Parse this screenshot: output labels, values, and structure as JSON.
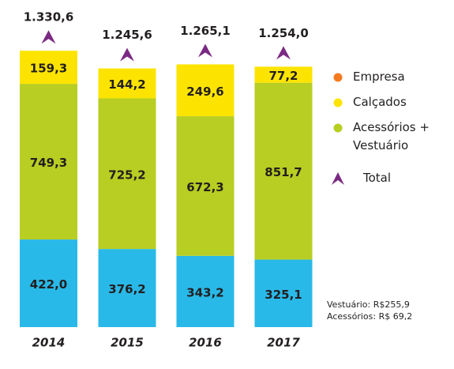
{
  "chart_data": {
    "type": "stacked_bar",
    "categories": [
      "2014",
      "2015",
      "2016",
      "2017"
    ],
    "series": [
      {
        "name": "Empresa",
        "color": "#29b9e8",
        "legend_color": "#f47b20",
        "values": [
          422.0,
          376.2,
          343.2,
          325.1
        ],
        "value_labels": [
          "422,0",
          "376,2",
          "343,2",
          "325,1"
        ]
      },
      {
        "name": "Acessórios +\nVestuário",
        "color": "#b8ce22",
        "values": [
          749.3,
          725.2,
          672.3,
          851.7
        ],
        "value_labels": [
          "749,3",
          "725,2",
          "672,3",
          "851,7"
        ]
      },
      {
        "name": "Calçados",
        "color": "#fde400",
        "values": [
          159.3,
          144.2,
          249.6,
          77.2
        ],
        "value_labels": [
          "159,3",
          "144,2",
          "249,6",
          "77,2"
        ]
      }
    ],
    "total": {
      "name": "Total",
      "color": "#7b2a83",
      "values": [
        1330.6,
        1245.6,
        1265.1,
        1254.0
      ],
      "value_labels": [
        "1.330,6",
        "1.245,6",
        "1.265,1",
        "1.254,0"
      ]
    },
    "ylim": [
      0,
      1400
    ],
    "annotations": [
      "Vestuário: R$255,9",
      "Acessórios: R$ 69,2"
    ]
  }
}
